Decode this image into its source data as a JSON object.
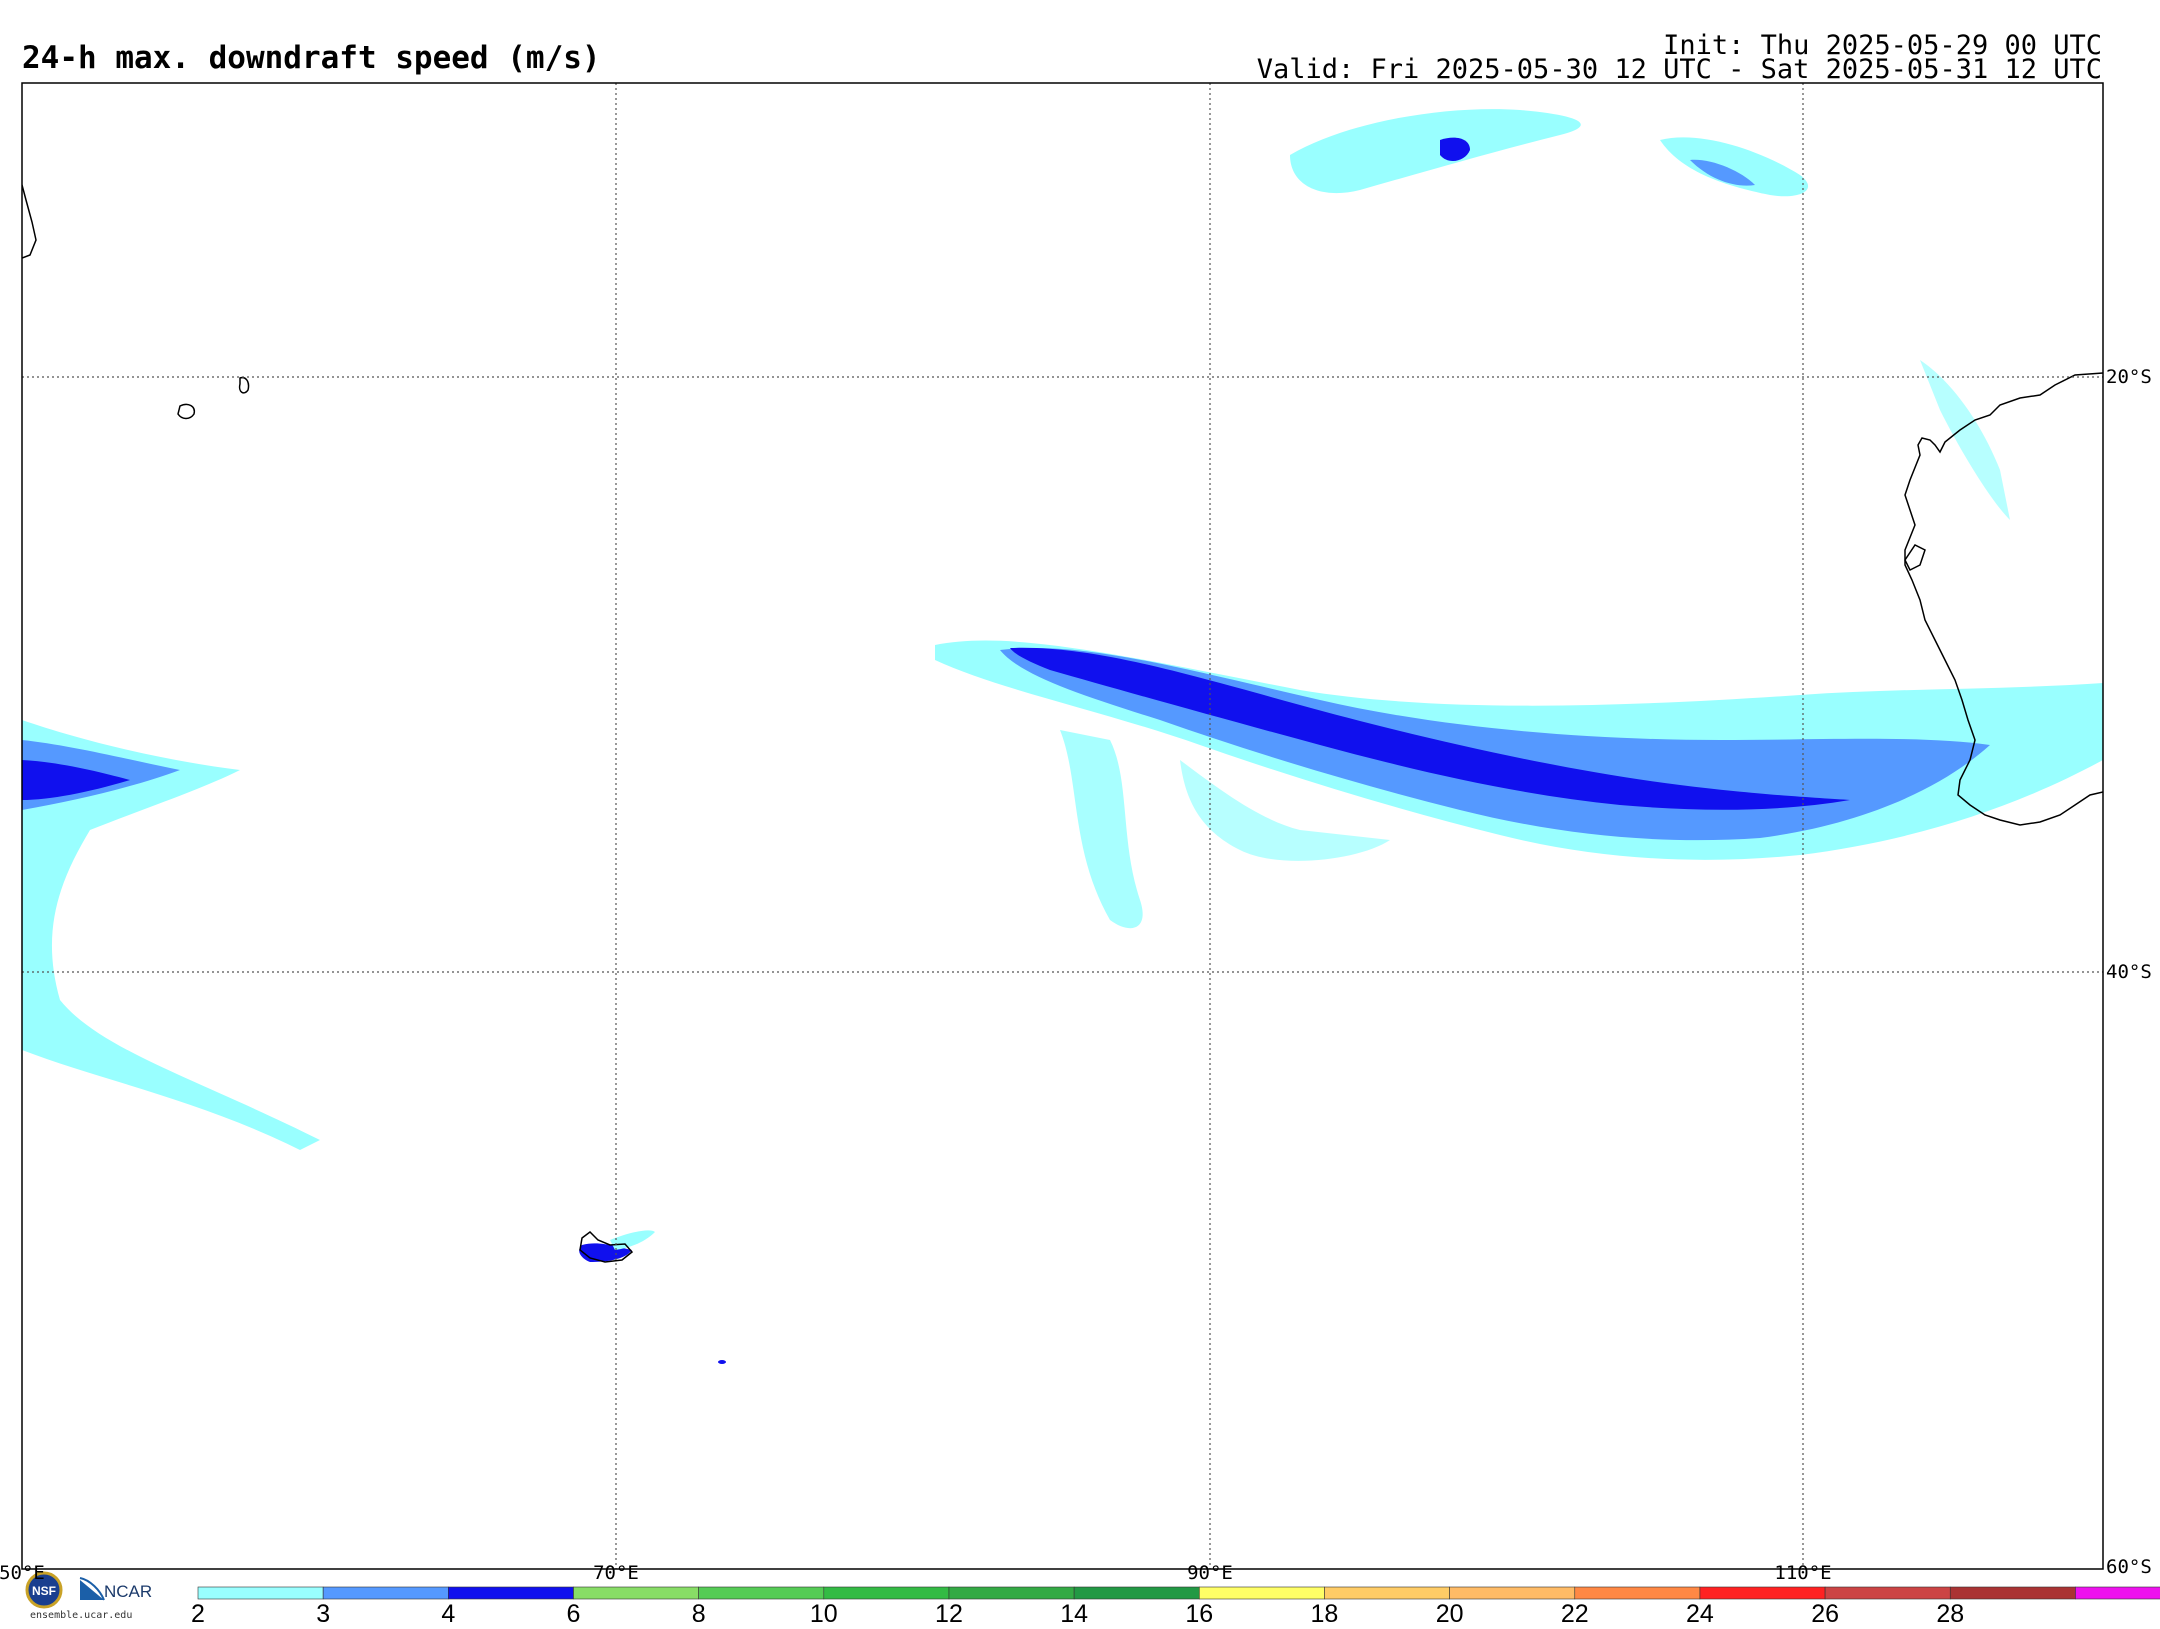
{
  "header": {
    "title": "24-h max. downdraft speed (m/s)",
    "init": "Init: Thu 2025-05-29 00 UTC",
    "valid": "Valid: Fri 2025-05-30 12 UTC - Sat 2025-05-31 12 UTC"
  },
  "map": {
    "region": "Southern Indian Ocean",
    "lat_labels": [
      "20°S",
      "40°S",
      "60°S"
    ],
    "lon_labels": [
      "50°E",
      "70°E",
      "90°E",
      "110°E"
    ],
    "gridlines": "dotted",
    "colors": {
      "coast": "#000000",
      "grid": "#555555",
      "band_2_3": "#99ffff",
      "band_3_4": "#5599ff",
      "band_4_6": "#1010ee"
    }
  },
  "colorbar": {
    "ticks": [
      "2",
      "3",
      "4",
      "6",
      "8",
      "10",
      "12",
      "14",
      "16",
      "18",
      "20",
      "22",
      "24",
      "26",
      "28"
    ],
    "colors": [
      "#99ffff",
      "#5599ff",
      "#1010ee",
      "#88dd66",
      "#55cc55",
      "#33bb44",
      "#33aa44",
      "#229944",
      "#ffff66",
      "#ffcc66",
      "#ffbb66",
      "#ff8844",
      "#ff2222",
      "#cc4444",
      "#aa3333",
      "#ee11ee",
      "#9966cc"
    ]
  },
  "logos": {
    "nsf": "NSF",
    "ncar": "NCAR",
    "url": "ensemble.ucar.edu"
  }
}
